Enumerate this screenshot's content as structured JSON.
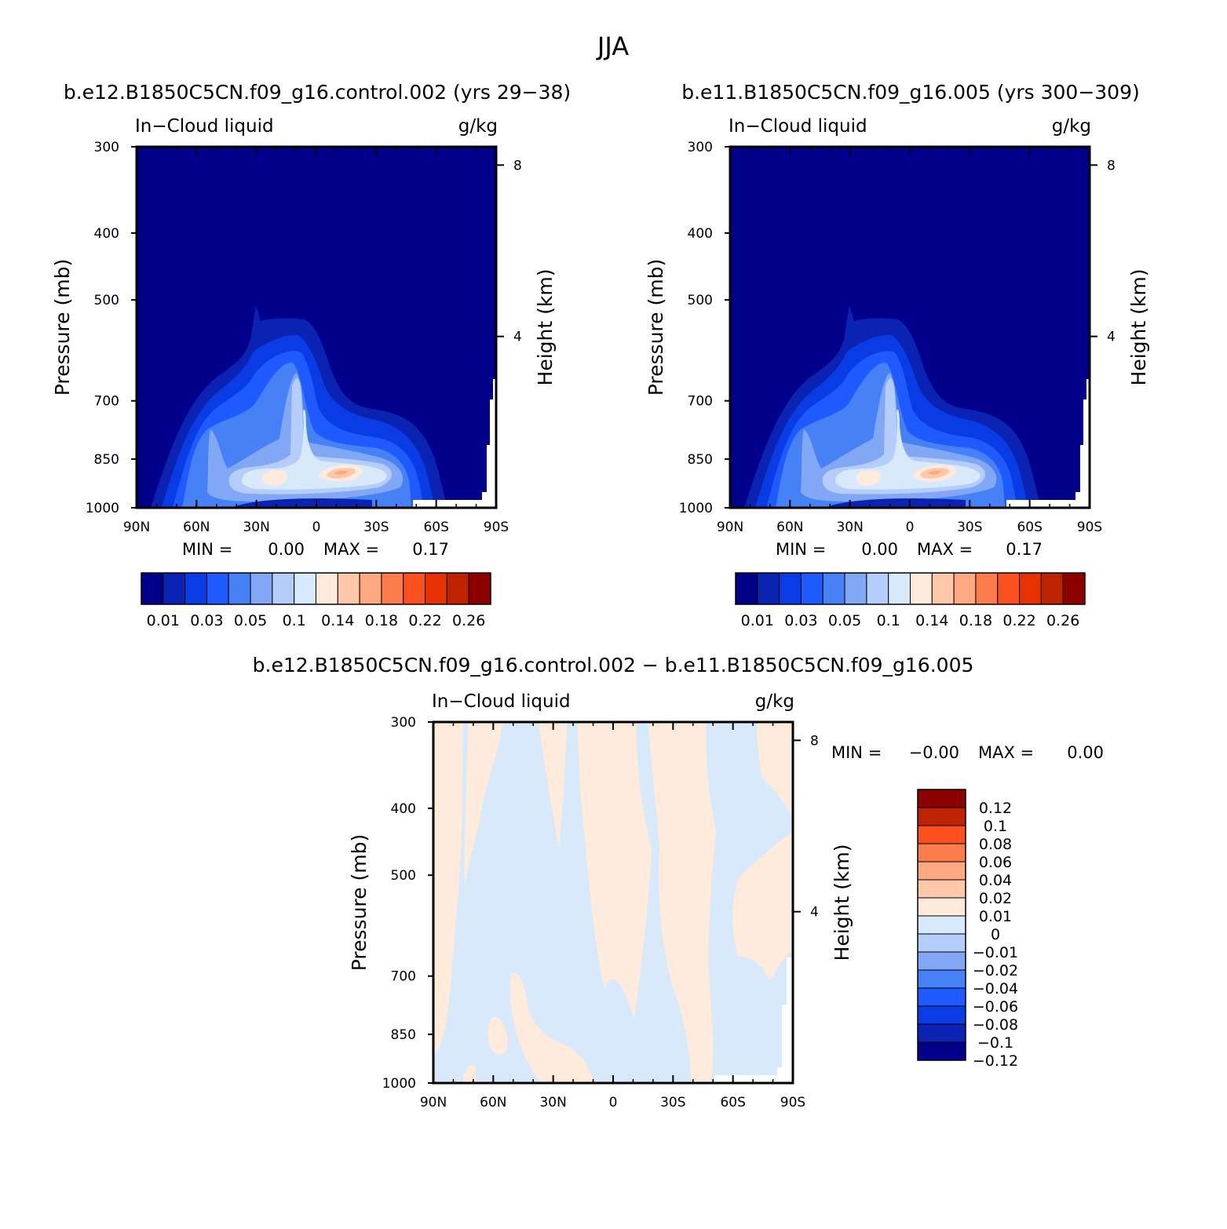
{
  "figure": {
    "title": "JJA",
    "variable": "In−Cloud liquid",
    "units": "g/kg",
    "ylabel_left": "Pressure (mb)",
    "ylabel_right": "Height (km)"
  },
  "colors": {
    "abs": [
      "#00008b",
      "#0a23b2",
      "#0a3ce6",
      "#1e5aff",
      "#4682f5",
      "#82a8f5",
      "#b4cdfa",
      "#d7e9fa",
      "#feebdc",
      "#fdc8aa",
      "#fca882",
      "#fc7d4b",
      "#fc501e",
      "#e63200",
      "#be2300",
      "#8c0000"
    ],
    "diff": [
      "#00008b",
      "#0a23b2",
      "#0a3ce6",
      "#1e5aff",
      "#4682f5",
      "#82a8f5",
      "#b4cdfa",
      "#d7e9fa",
      "#feebdc",
      "#fdc8aa",
      "#fca882",
      "#fc7d4b",
      "#fc501e",
      "#be2300",
      "#8c0000"
    ],
    "missing": "#ffffff"
  },
  "chart_data": [
    {
      "type": "contour",
      "title": "b.e12.B1850C5CN.f09_g16.control.002 (yrs 29−38)",
      "left_string": "In−Cloud liquid",
      "right_string": "g/kg",
      "xlabel": "",
      "ylabel": "Pressure (mb)",
      "ylabel_right": "Height (km)",
      "x_ticks": [
        "90N",
        "60N",
        "30N",
        "0",
        "30S",
        "60S",
        "90S"
      ],
      "x_values": [
        90,
        60,
        30,
        0,
        -30,
        -60,
        -90
      ],
      "xlim": [
        90,
        -90
      ],
      "y_ticks": [
        300,
        400,
        500,
        700,
        850,
        1000
      ],
      "ylim": [
        1000,
        300
      ],
      "height_ticks": [
        4,
        8
      ],
      "stats": {
        "min_label": "MIN =",
        "min": "0.00",
        "max_label": "MAX =",
        "max": "0.17"
      },
      "levels": [
        0.01,
        0.02,
        0.03,
        0.04,
        0.05,
        0.07,
        0.1,
        0.12,
        0.14,
        0.16,
        0.18,
        0.2,
        0.22,
        0.24,
        0.26
      ],
      "colorbar_labels": [
        "0.01",
        "0.03",
        "0.05",
        "0.1",
        "0.14",
        "0.18",
        "0.22",
        "0.26"
      ]
    },
    {
      "type": "contour",
      "title": "b.e11.B1850C5CN.f09_g16.005 (yrs 300−309)",
      "left_string": "In−Cloud liquid",
      "right_string": "g/kg",
      "xlabel": "",
      "ylabel": "Pressure (mb)",
      "ylabel_right": "Height (km)",
      "x_ticks": [
        "90N",
        "60N",
        "30N",
        "0",
        "30S",
        "60S",
        "90S"
      ],
      "x_values": [
        90,
        60,
        30,
        0,
        -30,
        -60,
        -90
      ],
      "xlim": [
        90,
        -90
      ],
      "y_ticks": [
        300,
        400,
        500,
        700,
        850,
        1000
      ],
      "ylim": [
        1000,
        300
      ],
      "height_ticks": [
        4,
        8
      ],
      "stats": {
        "min_label": "MIN =",
        "min": "0.00",
        "max_label": "MAX =",
        "max": "0.17"
      },
      "levels": [
        0.01,
        0.02,
        0.03,
        0.04,
        0.05,
        0.07,
        0.1,
        0.12,
        0.14,
        0.16,
        0.18,
        0.2,
        0.22,
        0.24,
        0.26
      ],
      "colorbar_labels": [
        "0.01",
        "0.03",
        "0.05",
        "0.1",
        "0.14",
        "0.18",
        "0.22",
        "0.26"
      ]
    },
    {
      "type": "contour",
      "title": "b.e12.B1850C5CN.f09_g16.control.002 − b.e11.B1850C5CN.f09_g16.005",
      "left_string": "In−Cloud liquid",
      "right_string": "g/kg",
      "xlabel": "",
      "ylabel": "Pressure (mb)",
      "ylabel_right": "Height (km)",
      "x_ticks": [
        "90N",
        "60N",
        "30N",
        "0",
        "30S",
        "60S",
        "90S"
      ],
      "x_values": [
        90,
        60,
        30,
        0,
        -30,
        -60,
        -90
      ],
      "xlim": [
        90,
        -90
      ],
      "y_ticks": [
        300,
        400,
        500,
        700,
        850,
        1000
      ],
      "ylim": [
        1000,
        300
      ],
      "height_ticks": [
        4,
        8
      ],
      "stats": {
        "min_label": "MIN =",
        "min": "−0.00",
        "max_label": "MAX =",
        "max": "0.00"
      },
      "colorbar_labels": [
        "0.12",
        "0.1",
        "0.08",
        "0.06",
        "0.04",
        "0.02",
        "0.01",
        "0",
        "−0.01",
        "−0.02",
        "−0.04",
        "−0.06",
        "−0.08",
        "−0.1",
        "−0.12"
      ]
    }
  ]
}
